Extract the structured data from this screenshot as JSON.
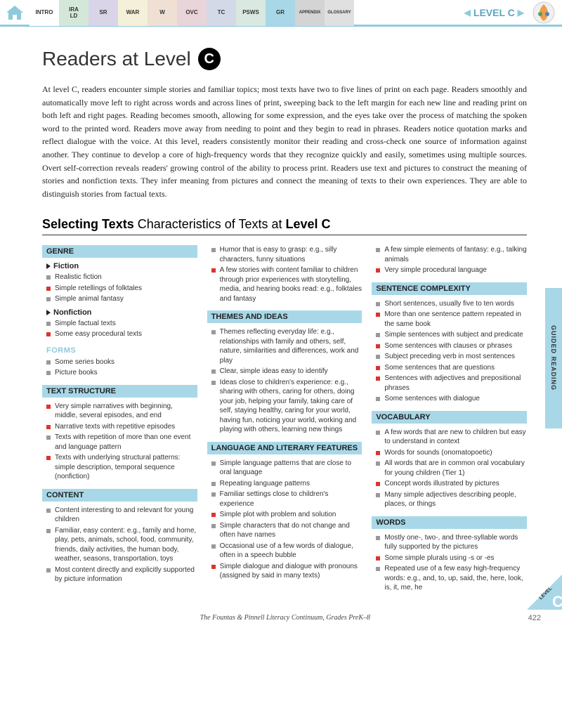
{
  "nav": {
    "tabs": [
      {
        "label": "INTRO",
        "cls": "intro"
      },
      {
        "label": "IRA\nLD",
        "cls": "ira"
      },
      {
        "label": "SR",
        "cls": "sr"
      },
      {
        "label": "WAR",
        "cls": "war"
      },
      {
        "label": "W",
        "cls": "w"
      },
      {
        "label": "OVC",
        "cls": "ovc"
      },
      {
        "label": "TC",
        "cls": "tc"
      },
      {
        "label": "PSWS",
        "cls": "psws"
      },
      {
        "label": "GR",
        "cls": "gr"
      },
      {
        "label": "APPENDIX",
        "cls": "app"
      },
      {
        "label": "GLOSSARY",
        "cls": "glo"
      }
    ],
    "level_label": "LEVEL C"
  },
  "title": {
    "prefix": "Readers at Level",
    "letter": "C"
  },
  "intro": "At level C, readers encounter simple stories and familiar topics; most texts have two to five lines of print on each page. Readers smoothly and automatically move left to right across words and across lines of print, sweeping back to the left margin for each new line and reading print on both left and right pages. Reading becomes smooth, allowing for some expression, and the eyes take over the process of matching the spoken word to the printed word. Readers move away from needing to point and they begin to read in phrases. Readers notice quotation marks and reflect dialogue with the voice. At this level, readers consistently monitor their reading and cross-check one source of information against another. They continue to develop a core of high-frequency words that they recognize quickly and easily, sometimes using multiple sources. Overt self-correction reveals readers' growing control of the ability to process print. Readers use text and pictures to construct the meaning of stories and nonfiction texts. They infer meaning from pictures and connect the meaning of texts to their own experiences. They are able to distinguish stories from factual texts.",
  "section": {
    "bold": "Selecting Texts",
    "light": "  Characteristics of Texts at ",
    "bold2": "Level C"
  },
  "col1": [
    {
      "type": "header",
      "text": "GENRE"
    },
    {
      "type": "sub",
      "text": "Fiction"
    },
    {
      "type": "item",
      "c": "gray",
      "text": "Realistic fiction"
    },
    {
      "type": "item",
      "c": "red",
      "text": "Simple retellings of folktales"
    },
    {
      "type": "item",
      "c": "gray",
      "text": "Simple animal fantasy"
    },
    {
      "type": "sub",
      "text": "Nonfiction"
    },
    {
      "type": "item",
      "c": "gray",
      "text": "Simple factual texts"
    },
    {
      "type": "item",
      "c": "red",
      "text": "Some easy procedural texts"
    },
    {
      "type": "forms",
      "text": "FORMS"
    },
    {
      "type": "item",
      "c": "gray",
      "text": "Some series books"
    },
    {
      "type": "item",
      "c": "gray",
      "text": "Picture books"
    },
    {
      "type": "header",
      "text": "TEXT STRUCTURE"
    },
    {
      "type": "item",
      "c": "red",
      "text": "Very simple narratives with beginning, middle, several episodes, and end"
    },
    {
      "type": "item",
      "c": "red",
      "text": "Narrative texts with repetitive episodes"
    },
    {
      "type": "item",
      "c": "gray",
      "text": "Texts with repetition of more than one event and language pattern"
    },
    {
      "type": "item",
      "c": "red",
      "text": "Texts with underlying structural patterns: simple description, temporal sequence (nonfiction)"
    },
    {
      "type": "header",
      "text": "CONTENT"
    },
    {
      "type": "item",
      "c": "gray",
      "text": "Content interesting to and relevant for young children"
    },
    {
      "type": "item",
      "c": "gray",
      "text": "Familiar, easy content: e.g., family and home, play, pets, animals, school, food, community, friends, daily activities, the human body, weather, seasons, transportation, toys"
    },
    {
      "type": "item",
      "c": "gray",
      "text": "Most content directly and explicitly supported by picture information"
    }
  ],
  "col2": [
    {
      "type": "item",
      "c": "gray",
      "text": "Humor that is easy to grasp: e.g., silly characters, funny situations"
    },
    {
      "type": "item",
      "c": "red",
      "text": "A few stories with content familiar to children through prior experiences with storytelling, media, and hearing books read: e.g., folktales and fantasy"
    },
    {
      "type": "header",
      "text": "THEMES AND IDEAS"
    },
    {
      "type": "item",
      "c": "gray",
      "text": "Themes reflecting everyday life: e.g., relationships with family and others, self, nature, similarities and differences, work and play"
    },
    {
      "type": "item",
      "c": "gray",
      "text": "Clear, simple ideas easy to identify"
    },
    {
      "type": "item",
      "c": "gray",
      "text": "Ideas close to children's experience: e.g., sharing with others, caring for others, doing your job, helping your family, taking care of self, staying healthy, caring for your world, having fun, noticing your world, working and playing with others, learning new things"
    },
    {
      "type": "header",
      "text": "LANGUAGE AND LITERARY FEATURES"
    },
    {
      "type": "item",
      "c": "gray",
      "text": "Simple language patterns that are close to oral language"
    },
    {
      "type": "item",
      "c": "gray",
      "text": "Repeating language patterns"
    },
    {
      "type": "item",
      "c": "gray",
      "text": "Familiar settings close to children's experience"
    },
    {
      "type": "item",
      "c": "red",
      "text": "Simple plot with problem and solution"
    },
    {
      "type": "item",
      "c": "gray",
      "text": "Simple characters that do not change and often have names"
    },
    {
      "type": "item",
      "c": "gray",
      "text": "Occasional use of a few words of dialogue, often in a speech bubble"
    },
    {
      "type": "item",
      "c": "red",
      "text": "Simple dialogue and dialogue with pronouns (assigned by said in many texts)"
    }
  ],
  "col3": [
    {
      "type": "item",
      "c": "gray",
      "text": "A few simple elements of fantasy: e.g., talking animals"
    },
    {
      "type": "item",
      "c": "red",
      "text": "Very simple procedural language"
    },
    {
      "type": "header",
      "text": "SENTENCE COMPLEXITY"
    },
    {
      "type": "item",
      "c": "gray",
      "text": "Short sentences, usually five to ten words"
    },
    {
      "type": "item",
      "c": "red",
      "text": "More than one sentence pattern repeated in the same book"
    },
    {
      "type": "item",
      "c": "gray",
      "text": "Simple sentences with subject and predicate"
    },
    {
      "type": "item",
      "c": "red",
      "text": "Some sentences with clauses or phrases"
    },
    {
      "type": "item",
      "c": "gray",
      "text": "Subject preceding verb in most sentences"
    },
    {
      "type": "item",
      "c": "red",
      "text": "Some sentences that are questions"
    },
    {
      "type": "item",
      "c": "red",
      "text": "Sentences with adjectives and prepositional phrases"
    },
    {
      "type": "item",
      "c": "gray",
      "text": "Some sentences with dialogue"
    },
    {
      "type": "header",
      "text": "VOCABULARY"
    },
    {
      "type": "item",
      "c": "gray",
      "text": "A few words that are new to children but easy to understand in context"
    },
    {
      "type": "item",
      "c": "red",
      "text": "Words for sounds (onomatopoetic)"
    },
    {
      "type": "item",
      "c": "gray",
      "text": "All words that are in common oral vocabulary for young children (Tier 1)"
    },
    {
      "type": "item",
      "c": "red",
      "text": "Concept words illustrated by pictures"
    },
    {
      "type": "item",
      "c": "gray",
      "text": "Many simple adjectives describing people, places, or things"
    },
    {
      "type": "header",
      "text": "WORDS"
    },
    {
      "type": "item",
      "c": "gray",
      "text": "Mostly one-, two-, and three-syllable words fully supported by the pictures"
    },
    {
      "type": "item",
      "c": "red",
      "text": "Some simple plurals using -s or -es"
    },
    {
      "type": "item",
      "c": "gray",
      "text": "Repeated use of a few easy high-frequency words: e.g., and, to, up, said, the, here, look, is, it, me, he"
    }
  ],
  "side_tab": "GUIDED READING",
  "corner": {
    "level": "LEVEL",
    "letter": "C"
  },
  "footer": {
    "credit": "The Fountas & Pinnell Literacy Continuum, Grades PreK–8",
    "page": "422"
  }
}
